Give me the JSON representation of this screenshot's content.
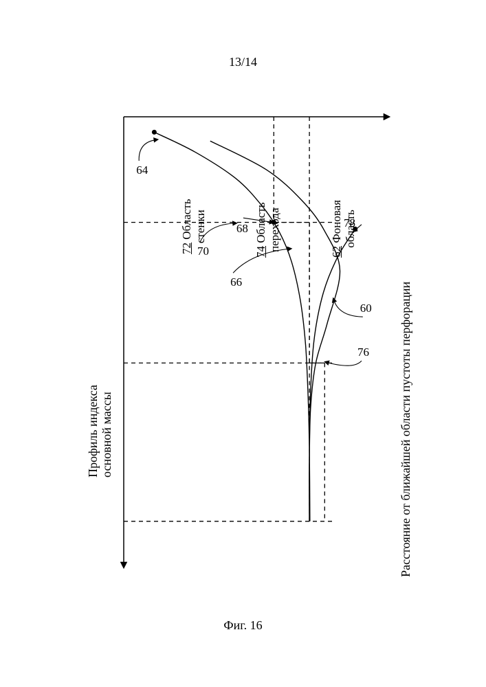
{
  "page_number": "13/14",
  "figure_caption": "Фиг. 16",
  "axes": {
    "y_label": "Профиль индекса\nосновной массы",
    "x_label": "Расстояние от ближайшей области пустоты перфорации",
    "x_range": [
      0,
      10
    ],
    "y_range": [
      0,
      10
    ],
    "axis_color": "#000000",
    "axis_width": 1.5,
    "arrowheads": true
  },
  "aspect_ratio": "portrait-rotated",
  "regions": {
    "wall": {
      "ref": "72",
      "label": "Область\nстенки",
      "x_start": 0.0,
      "x_end": 2.4
    },
    "transition": {
      "ref": "74",
      "label": "Область\nперехода",
      "x_start": 2.4,
      "x_end": 5.6
    },
    "background": {
      "ref": "62",
      "label": "Фоновая\nобласть",
      "x_start": 5.6,
      "x_end": 9.2
    }
  },
  "region_divider_style": {
    "color": "#000000",
    "dash": "6,5",
    "width": 1.3
  },
  "curves": {
    "64": {
      "type": "curve",
      "color": "#000000",
      "width": 1.4,
      "points": [
        [
          0.35,
          1.2
        ],
        [
          0.8,
          2.8
        ],
        [
          1.4,
          4.4
        ],
        [
          2.0,
          5.4
        ],
        [
          2.6,
          6.1
        ],
        [
          3.3,
          6.6
        ],
        [
          4.2,
          6.95
        ],
        [
          5.2,
          7.15
        ],
        [
          6.4,
          7.25
        ],
        [
          7.6,
          7.3
        ],
        [
          9.2,
          7.32
        ]
      ],
      "start_marker": true
    },
    "60": {
      "type": "curve",
      "color": "#000000",
      "width": 1.4,
      "points": [
        [
          0.55,
          3.4
        ],
        [
          1.2,
          5.6
        ],
        [
          1.9,
          7.0
        ],
        [
          2.6,
          7.9
        ],
        [
          3.5,
          8.5
        ],
        [
          4.7,
          8.0
        ],
        [
          5.6,
          7.55
        ],
        [
          6.6,
          7.35
        ],
        [
          7.8,
          7.3
        ],
        [
          9.2,
          7.3
        ]
      ]
    },
    "78": {
      "type": "curve",
      "color": "#000000",
      "width": 1.4,
      "points": [
        [
          2.55,
          9.1
        ],
        [
          3.2,
          8.4
        ],
        [
          4.0,
          7.85
        ],
        [
          5.0,
          7.5
        ],
        [
          6.2,
          7.35
        ],
        [
          7.6,
          7.3
        ],
        [
          9.2,
          7.3
        ]
      ],
      "start_marker": true
    }
  },
  "step_lines": {
    "70": {
      "color": "#000000",
      "dash": "6,5",
      "width": 1.3,
      "segments": [
        {
          "from": [
            0.0,
            5.9
          ],
          "to": [
            2.4,
            5.9
          ]
        },
        {
          "from": [
            2.4,
            5.9
          ],
          "to": [
            2.4,
            7.3
          ]
        },
        {
          "from": [
            2.4,
            7.3
          ],
          "to": [
            9.2,
            7.3
          ]
        }
      ],
      "corner_marker": [
        2.4,
        5.9
      ]
    },
    "76": {
      "color": "#000000",
      "dash": "6,5",
      "width": 1.3,
      "segments": [
        {
          "from": [
            0.0,
            7.3
          ],
          "to": [
            5.6,
            7.3
          ]
        },
        {
          "from": [
            5.6,
            7.3
          ],
          "to": [
            5.6,
            7.9
          ]
        },
        {
          "from": [
            5.6,
            7.9
          ],
          "to": [
            9.2,
            7.9
          ]
        }
      ]
    }
  },
  "callouts": {
    "60": {
      "label_at": [
        4.55,
        9.4
      ],
      "tip": [
        4.15,
        8.25
      ],
      "curved": true
    },
    "64": {
      "label_at": [
        1.0,
        0.6
      ],
      "tip": [
        0.52,
        1.3
      ],
      "curved": true
    },
    "66": {
      "label_at": [
        3.55,
        4.3
      ],
      "tip": [
        3.0,
        6.55
      ],
      "curved": true
    },
    "68": {
      "label_at": [
        2.3,
        4.7
      ],
      "tip": [
        2.4,
        5.85
      ],
      "straight": true
    },
    "70": {
      "label_at": [
        2.85,
        3.0
      ],
      "tip": [
        2.42,
        4.4
      ],
      "curved": true
    },
    "76": {
      "label_at": [
        5.55,
        9.35
      ],
      "tip": [
        5.58,
        7.95
      ],
      "curved": true
    },
    "78": {
      "label_at": [
        2.45,
        9.35
      ],
      "tip": [
        2.6,
        9.05
      ],
      "short": true
    }
  },
  "marker_style": {
    "radius": 3.5,
    "fill": "#000000"
  },
  "background_color": "#ffffff"
}
